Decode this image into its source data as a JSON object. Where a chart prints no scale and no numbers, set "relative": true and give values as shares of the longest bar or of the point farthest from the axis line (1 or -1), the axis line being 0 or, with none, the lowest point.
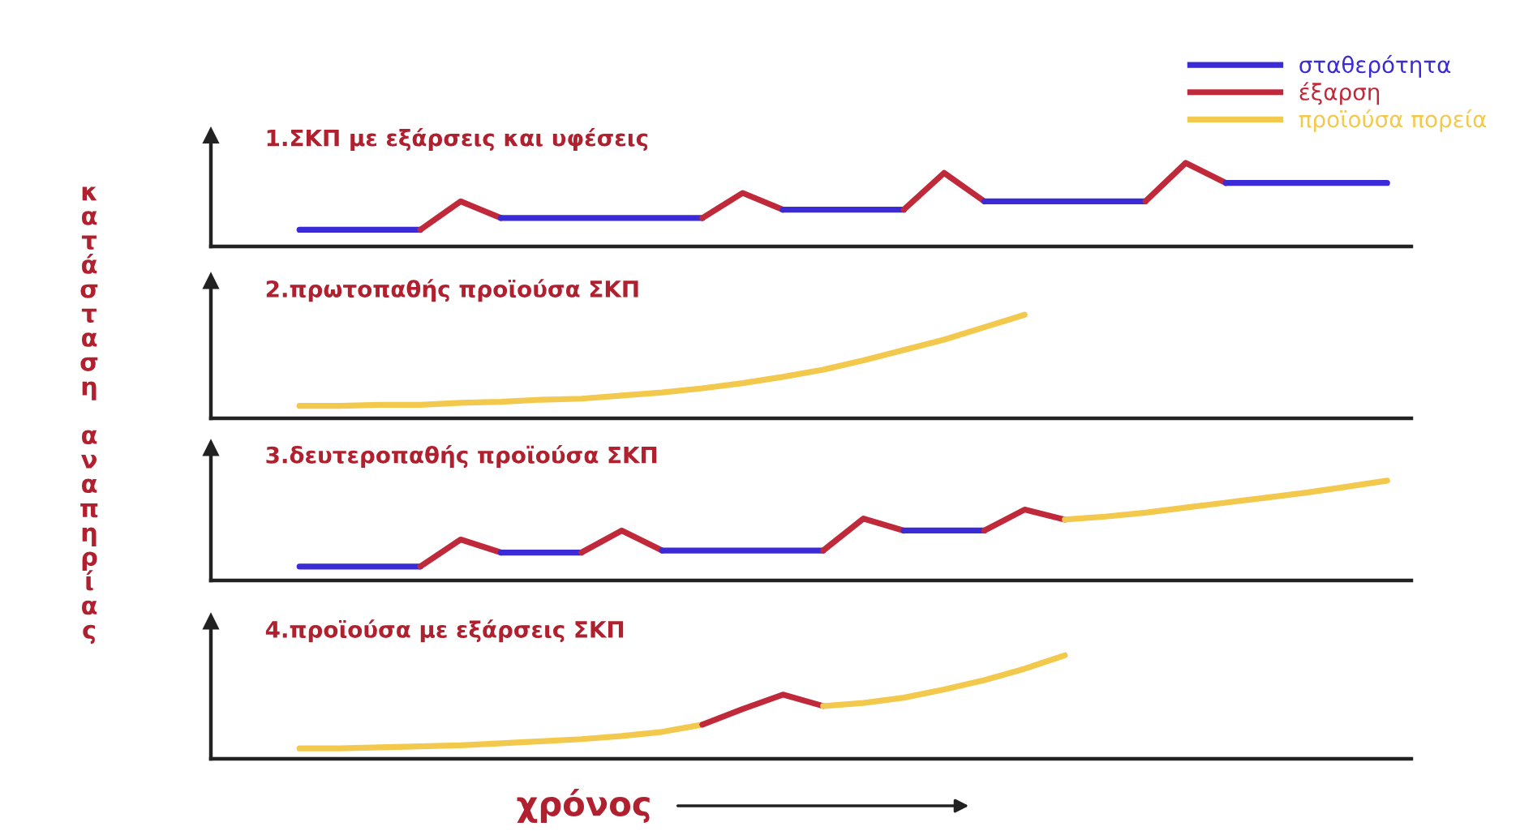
{
  "chart_data": [
    {
      "type": "line",
      "relative": true,
      "title": "1.ΣΚΠ με εξάρσεις και υφέσεις",
      "ylabel": "κατάσταση αναπηρίας",
      "legend": "top right",
      "grid": false,
      "categories": [
        null,
        null,
        null,
        null,
        null,
        null,
        null,
        null,
        null,
        null,
        null,
        null,
        null,
        null,
        null,
        null,
        null,
        null,
        null,
        null,
        null,
        null,
        null,
        null,
        null,
        null,
        null,
        null,
        null,
        null
      ],
      "series": [
        {
          "name": "σταθερότητα",
          "color": "#3b2bd6",
          "values": [
            null,
            null,
            0.2,
            0.2,
            0.2,
            0.2,
            null,
            null,
            null,
            null,
            null,
            null,
            null,
            null,
            null,
            null,
            null,
            null,
            null,
            null,
            null,
            null,
            null,
            null,
            null,
            null,
            null,
            null,
            null,
            null
          ]
        },
        {
          "name": "έξαρση",
          "color": "#c0293a",
          "values": [
            null,
            null,
            null,
            null,
            null,
            0.2,
            0.54,
            0.34,
            null,
            null,
            null,
            null,
            null,
            null,
            null,
            null,
            null,
            null,
            null,
            null,
            null,
            null,
            null,
            null,
            null,
            null,
            null,
            null,
            null,
            null
          ]
        },
        {
          "name": "προϊούσα πορεία",
          "color": "#f2c94c",
          "values": [
            null,
            null,
            null,
            null,
            null,
            null,
            null,
            null,
            null,
            null,
            null,
            null,
            null,
            null,
            null,
            null,
            null,
            null,
            null,
            null,
            null,
            null,
            null,
            null,
            null,
            null,
            null,
            null,
            null,
            null
          ]
        },
        {
          "color": "#3b2bd6",
          "values": [
            null,
            null,
            null,
            null,
            null,
            null,
            null,
            0.34,
            0.34,
            0.34,
            0.34,
            0.34,
            0.34,
            null,
            null,
            null,
            null,
            null,
            null,
            null,
            null,
            null,
            null,
            null,
            null,
            null,
            null,
            null,
            null,
            null
          ]
        },
        {
          "color": "#c0293a",
          "values": [
            null,
            null,
            null,
            null,
            null,
            null,
            null,
            null,
            null,
            null,
            null,
            null,
            0.34,
            0.64,
            0.44,
            null,
            null,
            null,
            null,
            null,
            null,
            null,
            null,
            null,
            null,
            null,
            null,
            null,
            null,
            null
          ]
        },
        {
          "color": "#3b2bd6",
          "values": [
            null,
            null,
            null,
            null,
            null,
            null,
            null,
            null,
            null,
            null,
            null,
            null,
            null,
            null,
            0.44,
            0.44,
            0.44,
            0.44,
            null,
            null,
            null,
            null,
            null,
            null,
            null,
            null,
            null,
            null,
            null,
            null
          ]
        },
        {
          "color": "#c0293a",
          "values": [
            null,
            null,
            null,
            null,
            null,
            null,
            null,
            null,
            null,
            null,
            null,
            null,
            null,
            null,
            null,
            null,
            null,
            0.44,
            0.88,
            0.54,
            null,
            null,
            null,
            null,
            null,
            null,
            null,
            null,
            null,
            null
          ]
        },
        {
          "color": "#3b2bd6",
          "values": [
            null,
            null,
            null,
            null,
            null,
            null,
            null,
            null,
            null,
            null,
            null,
            null,
            null,
            null,
            null,
            null,
            null,
            null,
            null,
            0.54,
            0.54,
            0.54,
            0.54,
            0.54,
            null,
            null,
            null,
            null,
            null,
            null
          ]
        },
        {
          "color": "#c0293a",
          "values": [
            null,
            null,
            null,
            null,
            null,
            null,
            null,
            null,
            null,
            null,
            null,
            null,
            null,
            null,
            null,
            null,
            null,
            null,
            null,
            null,
            null,
            null,
            null,
            0.54,
            1,
            0.76,
            null,
            null,
            null,
            null
          ]
        },
        {
          "color": "#3b2bd6",
          "values": [
            null,
            null,
            null,
            null,
            null,
            null,
            null,
            null,
            null,
            null,
            null,
            null,
            null,
            null,
            null,
            null,
            null,
            null,
            null,
            null,
            null,
            null,
            null,
            null,
            null,
            0.76,
            0.76,
            0.76,
            0.76,
            0.76
          ]
        }
      ]
    },
    {
      "type": "line",
      "relative": true,
      "title": "2.πρωτοπαθής προϊούσα ΣΚΠ",
      "grid": false,
      "categories": [
        null,
        null,
        null,
        null,
        null,
        null,
        null,
        null,
        null,
        null,
        null,
        null,
        null,
        null,
        null,
        null,
        null,
        null,
        null,
        null,
        null,
        null,
        null,
        null,
        null,
        null,
        null,
        null,
        null,
        null
      ],
      "series": [
        {
          "color": "#f2c94c",
          "values": [
            null,
            null,
            0.12,
            0.12,
            0.13,
            0.13,
            0.15,
            0.16,
            0.18,
            0.19,
            0.22,
            0.25,
            0.29,
            0.34,
            0.4,
            0.47,
            0.56,
            0.66,
            0.76,
            0.88,
            1,
            null,
            null,
            null,
            null,
            null,
            null,
            null,
            null,
            null
          ]
        }
      ]
    },
    {
      "type": "line",
      "relative": true,
      "title": "3.δευτεροπαθής προϊούσα ΣΚΠ",
      "grid": false,
      "categories": [
        null,
        null,
        null,
        null,
        null,
        null,
        null,
        null,
        null,
        null,
        null,
        null,
        null,
        null,
        null,
        null,
        null,
        null,
        null,
        null,
        null,
        null,
        null,
        null,
        null,
        null,
        null,
        null,
        null,
        null
      ],
      "series": [
        {
          "color": "#3b2bd6",
          "values": [
            null,
            null,
            0.14,
            0.14,
            0.14,
            0.14,
            null,
            null,
            null,
            null,
            null,
            null,
            null,
            null,
            null,
            null,
            null,
            null,
            null,
            null,
            null,
            null,
            null,
            null,
            null,
            null,
            null,
            null,
            null,
            null
          ]
        },
        {
          "color": "#c0293a",
          "values": [
            null,
            null,
            null,
            null,
            null,
            0.14,
            0.41,
            0.28,
            null,
            null,
            null,
            null,
            null,
            null,
            null,
            null,
            null,
            null,
            null,
            null,
            null,
            null,
            null,
            null,
            null,
            null,
            null,
            null,
            null,
            null
          ]
        },
        {
          "color": "#3b2bd6",
          "values": [
            null,
            null,
            null,
            null,
            null,
            null,
            null,
            0.28,
            0.28,
            0.28,
            null,
            null,
            null,
            null,
            null,
            null,
            null,
            null,
            null,
            null,
            null,
            null,
            null,
            null,
            null,
            null,
            null,
            null,
            null,
            null
          ]
        },
        {
          "color": "#c0293a",
          "values": [
            null,
            null,
            null,
            null,
            null,
            null,
            null,
            null,
            null,
            0.28,
            0.5,
            0.3,
            null,
            null,
            null,
            null,
            null,
            null,
            null,
            null,
            null,
            null,
            null,
            null,
            null,
            null,
            null,
            null,
            null,
            null
          ]
        },
        {
          "color": "#3b2bd6",
          "values": [
            null,
            null,
            null,
            null,
            null,
            null,
            null,
            null,
            null,
            null,
            null,
            0.3,
            0.3,
            0.3,
            0.3,
            0.3,
            null,
            null,
            null,
            null,
            null,
            null,
            null,
            null,
            null,
            null,
            null,
            null,
            null,
            null
          ]
        },
        {
          "color": "#c0293a",
          "values": [
            null,
            null,
            null,
            null,
            null,
            null,
            null,
            null,
            null,
            null,
            null,
            null,
            null,
            null,
            null,
            0.3,
            0.62,
            0.5,
            null,
            null,
            null,
            null,
            null,
            null,
            null,
            null,
            null,
            null,
            null,
            null
          ]
        },
        {
          "color": "#3b2bd6",
          "values": [
            null,
            null,
            null,
            null,
            null,
            null,
            null,
            null,
            null,
            null,
            null,
            null,
            null,
            null,
            null,
            null,
            null,
            0.5,
            0.5,
            0.5,
            null,
            null,
            null,
            null,
            null,
            null,
            null,
            null,
            null,
            null
          ]
        },
        {
          "color": "#c0293a",
          "values": [
            null,
            null,
            null,
            null,
            null,
            null,
            null,
            null,
            null,
            null,
            null,
            null,
            null,
            null,
            null,
            null,
            null,
            null,
            null,
            0.5,
            0.71,
            0.61,
            null,
            null,
            null,
            null,
            null,
            null,
            null,
            null
          ]
        },
        {
          "color": "#f2c94c",
          "values": [
            null,
            null,
            null,
            null,
            null,
            null,
            null,
            null,
            null,
            null,
            null,
            null,
            null,
            null,
            null,
            null,
            null,
            null,
            null,
            null,
            null,
            0.61,
            0.64,
            0.68,
            0.73,
            0.78,
            0.83,
            0.88,
            0.94,
            1
          ]
        }
      ]
    },
    {
      "type": "line",
      "relative": true,
      "title": "4.προϊούσα με εξάρσεις ΣΚΠ",
      "xlabel": "χρόνος",
      "grid": false,
      "categories": [
        null,
        null,
        null,
        null,
        null,
        null,
        null,
        null,
        null,
        null,
        null,
        null,
        null,
        null,
        null,
        null,
        null,
        null,
        null,
        null,
        null,
        null,
        null,
        null,
        null,
        null,
        null,
        null,
        null,
        null
      ],
      "series": [
        {
          "color": "#f2c94c",
          "values": [
            null,
            null,
            0.1,
            0.1,
            0.11,
            0.12,
            0.13,
            0.15,
            0.17,
            0.19,
            0.22,
            0.26,
            0.33,
            null,
            null,
            null,
            null,
            null,
            null,
            null,
            null,
            null,
            null,
            null,
            null,
            null,
            null,
            null,
            null,
            null
          ]
        },
        {
          "color": "#c0293a",
          "values": [
            null,
            null,
            null,
            null,
            null,
            null,
            null,
            null,
            null,
            null,
            null,
            null,
            0.33,
            0.48,
            0.62,
            0.51,
            null,
            null,
            null,
            null,
            null,
            null,
            null,
            null,
            null,
            null,
            null,
            null,
            null,
            null
          ]
        },
        {
          "color": "#f2c94c",
          "values": [
            null,
            null,
            null,
            null,
            null,
            null,
            null,
            null,
            null,
            null,
            null,
            null,
            null,
            null,
            null,
            0.51,
            0.54,
            0.59,
            0.67,
            0.76,
            0.87,
            1,
            null,
            null,
            null,
            null,
            null,
            null,
            null,
            null
          ]
        }
      ]
    }
  ]
}
